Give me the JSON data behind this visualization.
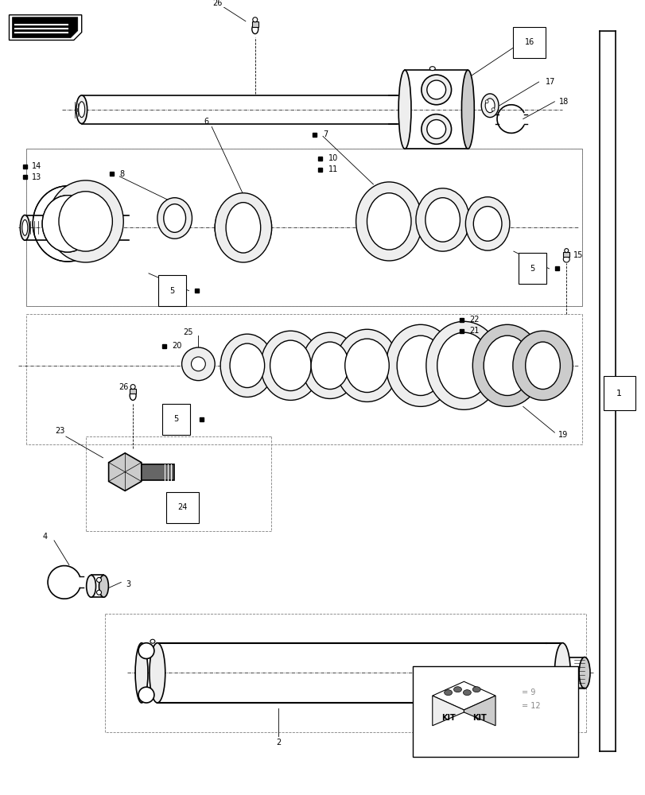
{
  "bg_color": "#ffffff",
  "lc": "#000000",
  "gray": "#888888",
  "fill_light": "#eeeeee",
  "fill_mid": "#cccccc",
  "fill_dark": "#666666",
  "fill_white": "#ffffff",
  "legend_circle_num": "9",
  "legend_square_num": "12"
}
